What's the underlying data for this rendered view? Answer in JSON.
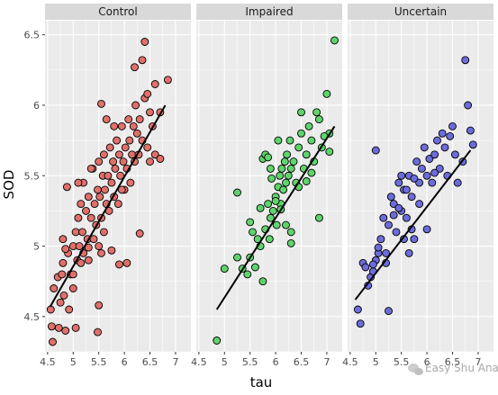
{
  "chart_data": {
    "type": "scatter",
    "facet_variable": "group",
    "xlabel": "tau",
    "ylabel": "SOD",
    "xlim": [
      4.45,
      7.3
    ],
    "ylim": [
      4.25,
      6.6
    ],
    "x_ticks": [
      "4.5",
      "5",
      "5.5",
      "6",
      "6.5",
      "7"
    ],
    "y_ticks": [
      "4.5",
      "5",
      "5.5",
      "6",
      "6.5"
    ],
    "grid": true,
    "panel_background": "#ebebeb",
    "strip_background": "#d9d9d9",
    "point_stroke": "#000000",
    "fit_line_color": "#000000",
    "panels": [
      {
        "label": "Control",
        "color": "#e0706a",
        "fit": [
          [
            4.55,
            4.57
          ],
          [
            6.8,
            6.0
          ]
        ],
        "points": [
          [
            4.56,
            4.55
          ],
          [
            4.6,
            4.32
          ],
          [
            4.58,
            4.43
          ],
          [
            4.62,
            4.7
          ],
          [
            4.7,
            4.78
          ],
          [
            4.72,
            4.42
          ],
          [
            4.75,
            4.6
          ],
          [
            4.78,
            4.8
          ],
          [
            4.8,
            4.88
          ],
          [
            4.82,
            4.65
          ],
          [
            4.85,
            4.4
          ],
          [
            4.8,
            5.05
          ],
          [
            4.9,
            4.95
          ],
          [
            4.88,
            5.42
          ],
          [
            4.95,
            4.8
          ],
          [
            5.0,
            5.0
          ],
          [
            5.05,
            4.42
          ],
          [
            5.05,
            5.1
          ],
          [
            5.08,
            4.9
          ],
          [
            5.1,
            5.2
          ],
          [
            5.12,
            5.0
          ],
          [
            5.15,
            5.3
          ],
          [
            5.18,
            5.1
          ],
          [
            5.2,
            5.45
          ],
          [
            5.25,
            5.25
          ],
          [
            5.28,
            5.05
          ],
          [
            5.3,
            5.35
          ],
          [
            5.3,
            4.9
          ],
          [
            5.35,
            5.2
          ],
          [
            5.38,
            5.55
          ],
          [
            5.4,
            5.05
          ],
          [
            5.42,
            5.3
          ],
          [
            5.45,
            5.15
          ],
          [
            5.48,
            5.4
          ],
          [
            5.5,
            5.0
          ],
          [
            5.5,
            5.6
          ],
          [
            5.52,
            5.35
          ],
          [
            5.55,
            5.2
          ],
          [
            5.55,
            4.95
          ],
          [
            5.58,
            5.5
          ],
          [
            5.6,
            5.65
          ],
          [
            5.62,
            5.4
          ],
          [
            5.65,
            5.3
          ],
          [
            5.68,
            5.5
          ],
          [
            5.7,
            5.25
          ],
          [
            5.72,
            5.7
          ],
          [
            5.75,
            5.45
          ],
          [
            5.78,
            5.6
          ],
          [
            5.8,
            5.35
          ],
          [
            5.82,
            5.55
          ],
          [
            5.85,
            5.75
          ],
          [
            5.88,
            5.3
          ],
          [
            5.9,
            5.65
          ],
          [
            5.92,
            5.5
          ],
          [
            5.95,
            5.85
          ],
          [
            5.98,
            5.6
          ],
          [
            6.0,
            5.4
          ],
          [
            6.02,
            5.7
          ],
          [
            6.05,
            5.55
          ],
          [
            6.08,
            5.9
          ],
          [
            6.1,
            5.75
          ],
          [
            6.12,
            5.45
          ],
          [
            6.15,
            5.65
          ],
          [
            6.18,
            5.85
          ],
          [
            6.2,
            5.6
          ],
          [
            6.22,
            6.0
          ],
          [
            6.25,
            5.8
          ],
          [
            6.28,
            5.65
          ],
          [
            6.3,
            5.9
          ],
          [
            6.35,
            5.75
          ],
          [
            6.4,
            6.05
          ],
          [
            6.45,
            5.7
          ],
          [
            6.5,
            5.95
          ],
          [
            6.55,
            5.85
          ],
          [
            6.6,
            5.65
          ],
          [
            6.4,
            6.45
          ],
          [
            6.2,
            6.27
          ],
          [
            6.85,
            6.18
          ],
          [
            6.35,
            6.32
          ],
          [
            6.7,
            5.62
          ],
          [
            5.3,
            4.99
          ],
          [
            5.5,
            4.58
          ],
          [
            5.48,
            4.39
          ],
          [
            5.9,
            4.87
          ],
          [
            6.05,
            4.88
          ],
          [
            6.3,
            5.09
          ],
          [
            5.1,
            5.45
          ],
          [
            4.92,
            4.55
          ],
          [
            5.0,
            4.8
          ],
          [
            5.2,
            4.95
          ],
          [
            5.35,
            5.55
          ],
          [
            5.6,
            5.1
          ],
          [
            5.75,
            4.97
          ],
          [
            5.95,
            5.4
          ],
          [
            6.45,
            6.08
          ],
          [
            6.6,
            6.15
          ],
          [
            5.65,
            5.9
          ],
          [
            5.8,
            5.85
          ],
          [
            6.7,
            5.95
          ],
          [
            5.55,
            6.01
          ],
          [
            6.5,
            5.6
          ],
          [
            5.0,
            4.7
          ],
          [
            4.85,
            4.98
          ],
          [
            5.15,
            4.88
          ]
        ]
      },
      {
        "label": "Impaired",
        "color": "#5fd46c",
        "fit": [
          [
            4.85,
            4.55
          ],
          [
            7.15,
            5.85
          ]
        ],
        "points": [
          [
            4.85,
            4.33
          ],
          [
            5.35,
            4.84
          ],
          [
            5.45,
            4.8
          ],
          [
            5.5,
            4.92
          ],
          [
            5.55,
            5.1
          ],
          [
            5.6,
            4.85
          ],
          [
            5.65,
            5.05
          ],
          [
            5.7,
            5.0
          ],
          [
            5.75,
            4.75
          ],
          [
            5.8,
            5.12
          ],
          [
            5.85,
            5.3
          ],
          [
            5.88,
            5.05
          ],
          [
            5.9,
            5.2
          ],
          [
            5.95,
            5.25
          ],
          [
            6.0,
            5.35
          ],
          [
            6.02,
            5.15
          ],
          [
            6.05,
            5.42
          ],
          [
            6.08,
            5.5
          ],
          [
            6.1,
            5.3
          ],
          [
            6.12,
            5.55
          ],
          [
            6.15,
            5.4
          ],
          [
            6.18,
            5.6
          ],
          [
            6.2,
            5.45
          ],
          [
            6.22,
            5.65
          ],
          [
            6.25,
            5.5
          ],
          [
            6.28,
            5.75
          ],
          [
            6.3,
            5.55
          ],
          [
            6.35,
            5.6
          ],
          [
            6.4,
            5.45
          ],
          [
            6.45,
            5.7
          ],
          [
            6.5,
            5.8
          ],
          [
            6.55,
            5.55
          ],
          [
            6.6,
            5.65
          ],
          [
            6.65,
            5.85
          ],
          [
            6.7,
            5.75
          ],
          [
            6.75,
            5.6
          ],
          [
            6.8,
            5.95
          ],
          [
            6.85,
            5.9
          ],
          [
            6.9,
            5.7
          ],
          [
            7.0,
            6.08
          ],
          [
            7.05,
            5.8
          ],
          [
            7.15,
            6.46
          ],
          [
            6.85,
            5.2
          ],
          [
            6.3,
            5.02
          ],
          [
            5.25,
            4.92
          ],
          [
            5.0,
            4.84
          ],
          [
            5.5,
            5.17
          ],
          [
            5.25,
            5.38
          ],
          [
            5.75,
            5.62
          ],
          [
            5.8,
            5.65
          ],
          [
            5.9,
            5.55
          ],
          [
            6.0,
            5.32
          ],
          [
            6.1,
            5.26
          ],
          [
            6.2,
            5.15
          ],
          [
            6.3,
            5.1
          ],
          [
            6.5,
            5.95
          ],
          [
            6.7,
            5.52
          ],
          [
            6.6,
            5.46
          ],
          [
            6.95,
            5.78
          ],
          [
            7.05,
            5.67
          ],
          [
            5.92,
            5.48
          ],
          [
            6.05,
            5.75
          ],
          [
            5.7,
            5.27
          ],
          [
            5.85,
            5.63
          ],
          [
            6.45,
            5.42
          ]
        ]
      },
      {
        "label": "Uncertain",
        "color": "#6c6cdb",
        "fit": [
          [
            4.6,
            4.62
          ],
          [
            6.85,
            5.68
          ]
        ],
        "points": [
          [
            4.65,
            4.55
          ],
          [
            4.7,
            4.45
          ],
          [
            4.75,
            4.88
          ],
          [
            4.8,
            4.85
          ],
          [
            4.85,
            4.72
          ],
          [
            4.9,
            4.78
          ],
          [
            4.95,
            4.82
          ],
          [
            5.0,
            4.9
          ],
          [
            5.05,
            4.95
          ],
          [
            5.1,
            5.05
          ],
          [
            5.15,
            5.2
          ],
          [
            5.2,
            4.88
          ],
          [
            5.25,
            5.15
          ],
          [
            5.3,
            5.35
          ],
          [
            5.35,
            5.3
          ],
          [
            5.4,
            5.1
          ],
          [
            5.45,
            5.45
          ],
          [
            5.5,
            5.25
          ],
          [
            5.55,
            5.4
          ],
          [
            5.6,
            5.2
          ],
          [
            5.65,
            5.5
          ],
          [
            5.7,
            5.35
          ],
          [
            5.75,
            5.05
          ],
          [
            5.8,
            5.6
          ],
          [
            5.85,
            5.45
          ],
          [
            5.9,
            5.55
          ],
          [
            5.95,
            5.7
          ],
          [
            6.0,
            5.5
          ],
          [
            6.05,
            5.62
          ],
          [
            6.1,
            5.45
          ],
          [
            6.15,
            5.65
          ],
          [
            6.2,
            5.75
          ],
          [
            6.25,
            5.55
          ],
          [
            6.3,
            5.8
          ],
          [
            6.35,
            5.7
          ],
          [
            6.4,
            5.5
          ],
          [
            6.45,
            5.78
          ],
          [
            6.5,
            5.85
          ],
          [
            6.55,
            5.65
          ],
          [
            6.6,
            5.45
          ],
          [
            6.7,
            5.6
          ],
          [
            6.75,
            6.32
          ],
          [
            6.8,
            6.0
          ],
          [
            6.85,
            5.82
          ],
          [
            6.9,
            5.72
          ],
          [
            5.0,
            5.68
          ],
          [
            5.2,
            4.95
          ],
          [
            5.25,
            4.54
          ],
          [
            5.45,
            5.27
          ],
          [
            5.55,
            5.05
          ],
          [
            5.7,
            5.12
          ],
          [
            5.65,
            4.95
          ],
          [
            5.85,
            5.3
          ],
          [
            6.0,
            5.12
          ],
          [
            5.35,
            5.22
          ],
          [
            5.5,
            5.5
          ],
          [
            5.6,
            5.4
          ],
          [
            5.75,
            5.48
          ],
          [
            6.15,
            5.52
          ],
          [
            4.95,
            4.87
          ],
          [
            5.05,
            4.99
          ]
        ]
      }
    ]
  },
  "watermark": {
    "icon": "wechat-icon",
    "text": "Easy Shu Analysis"
  }
}
